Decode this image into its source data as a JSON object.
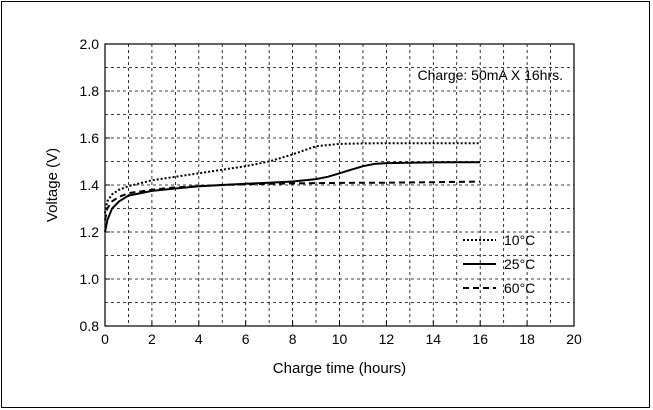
{
  "chart_data": {
    "type": "line",
    "title": "",
    "xlabel": "Charge time (hours)",
    "ylabel": "Voltage (V)",
    "annotation": "Charge: 50mA X 16hrs.",
    "xlim": [
      0,
      20
    ],
    "ylim": [
      0.8,
      2.0
    ],
    "x_ticks": [
      "0",
      "2",
      "4",
      "6",
      "8",
      "10",
      "12",
      "14",
      "16",
      "18",
      "20"
    ],
    "y_ticks": [
      "0.8",
      "1.0",
      "1.2",
      "1.4",
      "1.6",
      "1.8",
      "2.0"
    ],
    "grid": true,
    "legend_position": "bottom-right",
    "series": [
      {
        "name": "10°C",
        "line_style": "dotted",
        "x": [
          0,
          0.1,
          0.3,
          0.6,
          1,
          2,
          3,
          4,
          5,
          6,
          7,
          8,
          9,
          10,
          11,
          12,
          13,
          14,
          15,
          16
        ],
        "y": [
          1.28,
          1.33,
          1.36,
          1.38,
          1.395,
          1.42,
          1.435,
          1.45,
          1.465,
          1.48,
          1.5,
          1.53,
          1.565,
          1.575,
          1.577,
          1.578,
          1.578,
          1.578,
          1.578,
          1.578
        ]
      },
      {
        "name": "25°C",
        "line_style": "solid",
        "x": [
          0,
          0.1,
          0.3,
          0.6,
          1,
          2,
          3,
          4,
          5,
          6,
          7,
          8,
          9,
          9.5,
          10,
          10.5,
          11,
          11.5,
          12,
          13,
          14,
          15,
          16
        ],
        "y": [
          1.2,
          1.25,
          1.3,
          1.33,
          1.355,
          1.375,
          1.385,
          1.395,
          1.4,
          1.405,
          1.41,
          1.415,
          1.425,
          1.435,
          1.45,
          1.465,
          1.48,
          1.49,
          1.493,
          1.495,
          1.496,
          1.497,
          1.497
        ]
      },
      {
        "name": "60°C",
        "line_style": "dashed",
        "x": [
          0,
          0.1,
          0.3,
          0.6,
          1,
          2,
          3,
          4,
          5,
          6,
          7,
          8,
          9,
          10,
          11,
          12,
          13,
          14,
          15,
          16
        ],
        "y": [
          1.25,
          1.3,
          1.33,
          1.35,
          1.365,
          1.38,
          1.39,
          1.395,
          1.4,
          1.403,
          1.405,
          1.407,
          1.408,
          1.409,
          1.41,
          1.41,
          1.411,
          1.412,
          1.413,
          1.415
        ]
      }
    ]
  }
}
